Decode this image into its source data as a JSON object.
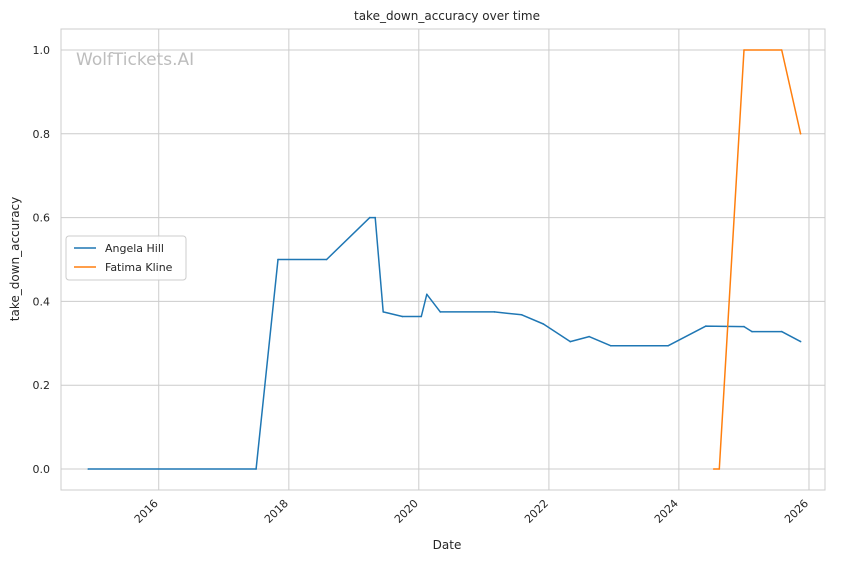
{
  "chart_data": {
    "type": "line",
    "title": "take_down_accuracy over time",
    "xlabel": "Date",
    "ylabel": "take_down_accuracy",
    "watermark": "WolfTickets.AI",
    "xlim": [
      "2014-07-01",
      "2026-04-01"
    ],
    "ylim": [
      -0.05,
      1.05
    ],
    "x_ticks": [
      {
        "date": "2016-01-01",
        "label": "2016"
      },
      {
        "date": "2018-01-01",
        "label": "2018"
      },
      {
        "date": "2020-01-01",
        "label": "2020"
      },
      {
        "date": "2022-01-01",
        "label": "2022"
      },
      {
        "date": "2024-01-01",
        "label": "2024"
      },
      {
        "date": "2026-01-01",
        "label": "2026"
      }
    ],
    "y_ticks": [
      {
        "value": 0.0,
        "label": "0.0"
      },
      {
        "value": 0.2,
        "label": "0.2"
      },
      {
        "value": 0.4,
        "label": "0.4"
      },
      {
        "value": 0.6,
        "label": "0.6"
      },
      {
        "value": 0.8,
        "label": "0.8"
      },
      {
        "value": 1.0,
        "label": "1.0"
      }
    ],
    "grid": true,
    "legend_position": "center-left",
    "series": [
      {
        "name": "Angela Hill",
        "color": "#1f77b4",
        "points": [
          {
            "x": "2014-12-01",
            "y": 0.0
          },
          {
            "x": "2017-07-01",
            "y": 0.0
          },
          {
            "x": "2017-11-01",
            "y": 0.5
          },
          {
            "x": "2018-08-01",
            "y": 0.5
          },
          {
            "x": "2019-04-01",
            "y": 0.6
          },
          {
            "x": "2019-05-01",
            "y": 0.6
          },
          {
            "x": "2019-06-15",
            "y": 0.375
          },
          {
            "x": "2019-10-01",
            "y": 0.364
          },
          {
            "x": "2020-01-15",
            "y": 0.364
          },
          {
            "x": "2020-02-15",
            "y": 0.417
          },
          {
            "x": "2020-05-01",
            "y": 0.375
          },
          {
            "x": "2021-03-01",
            "y": 0.375
          },
          {
            "x": "2021-08-01",
            "y": 0.368
          },
          {
            "x": "2021-12-01",
            "y": 0.346
          },
          {
            "x": "2022-05-01",
            "y": 0.304
          },
          {
            "x": "2022-08-15",
            "y": 0.316
          },
          {
            "x": "2022-12-15",
            "y": 0.294
          },
          {
            "x": "2023-11-01",
            "y": 0.294
          },
          {
            "x": "2024-06-01",
            "y": 0.341
          },
          {
            "x": "2025-01-01",
            "y": 0.34
          },
          {
            "x": "2025-02-15",
            "y": 0.328
          },
          {
            "x": "2025-08-01",
            "y": 0.328
          },
          {
            "x": "2025-11-15",
            "y": 0.304
          }
        ]
      },
      {
        "name": "Fatima Kline",
        "color": "#ff7f0e",
        "points": [
          {
            "x": "2024-07-15",
            "y": 0.0
          },
          {
            "x": "2024-08-15",
            "y": 0.0
          },
          {
            "x": "2025-01-01",
            "y": 1.0
          },
          {
            "x": "2025-08-01",
            "y": 1.0
          },
          {
            "x": "2025-11-15",
            "y": 0.8
          }
        ]
      }
    ]
  }
}
